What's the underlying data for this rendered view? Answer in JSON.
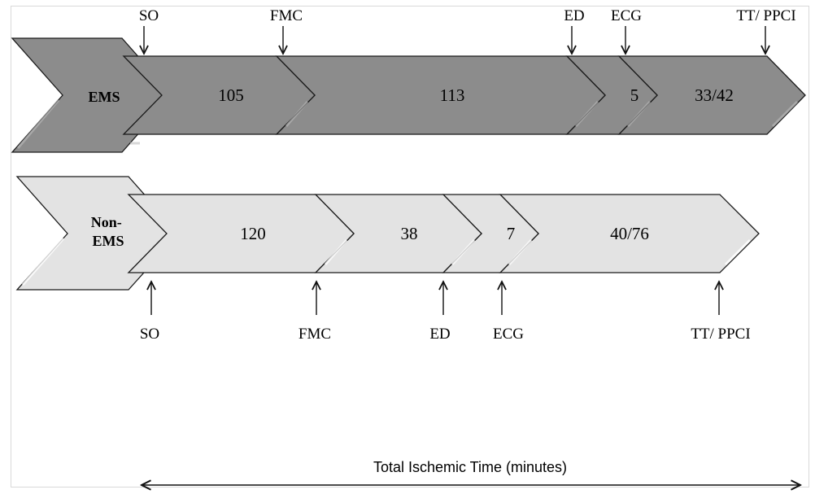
{
  "rows": [
    {
      "label_lines": [
        "EMS"
      ],
      "segments": [
        "105",
        "113",
        "5",
        "33/42"
      ],
      "markers": [
        "SO",
        "FMC",
        "ED",
        "ECG",
        "TT/ PPCI"
      ]
    },
    {
      "label_lines": [
        "Non-",
        "EMS"
      ],
      "segments": [
        "120",
        "38",
        "7",
        "40/76"
      ],
      "markers": [
        "SO",
        "FMC",
        "ED",
        "ECG",
        "TT/ PPCI"
      ]
    }
  ],
  "total_label": "Total Ischemic Time (minutes)",
  "colors": {
    "ems_fill": "#8c8c8c",
    "non_ems_fill": "#e3e3e3",
    "stroke": "#1a1a1a",
    "frame": "#d9d9d9"
  }
}
